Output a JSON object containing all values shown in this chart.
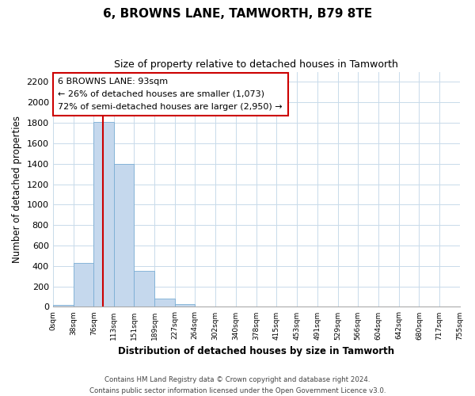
{
  "title": "6, BROWNS LANE, TAMWORTH, B79 8TE",
  "subtitle": "Size of property relative to detached houses in Tamworth",
  "xlabel": "Distribution of detached houses by size in Tamworth",
  "ylabel": "Number of detached properties",
  "bin_labels": [
    "0sqm",
    "38sqm",
    "76sqm",
    "113sqm",
    "151sqm",
    "189sqm",
    "227sqm",
    "264sqm",
    "302sqm",
    "340sqm",
    "378sqm",
    "415sqm",
    "453sqm",
    "491sqm",
    "529sqm",
    "566sqm",
    "604sqm",
    "642sqm",
    "680sqm",
    "717sqm",
    "755sqm"
  ],
  "bar_values": [
    20,
    430,
    1810,
    1400,
    350,
    80,
    25,
    5,
    0,
    0,
    0,
    0,
    0,
    0,
    0,
    0,
    0,
    0,
    0,
    0
  ],
  "bar_color": "#c5d8ed",
  "bar_edge_color": "#7aadd4",
  "vline_x": 93,
  "vline_color": "#cc0000",
  "annotation_title": "6 BROWNS LANE: 93sqm",
  "annotation_line1": "← 26% of detached houses are smaller (1,073)",
  "annotation_line2": "72% of semi-detached houses are larger (2,950) →",
  "annotation_box_color": "#ffffff",
  "annotation_box_edge": "#cc0000",
  "ylim": [
    0,
    2300
  ],
  "yticks": [
    0,
    200,
    400,
    600,
    800,
    1000,
    1200,
    1400,
    1600,
    1800,
    2000,
    2200
  ],
  "footer1": "Contains HM Land Registry data © Crown copyright and database right 2024.",
  "footer2": "Contains public sector information licensed under the Open Government Licence v3.0.",
  "bin_edges": [
    0,
    38,
    76,
    113,
    151,
    189,
    227,
    264,
    302,
    340,
    378,
    415,
    453,
    491,
    529,
    566,
    604,
    642,
    680,
    717,
    755
  ],
  "background_color": "#ffffff",
  "grid_color": "#c8daea"
}
